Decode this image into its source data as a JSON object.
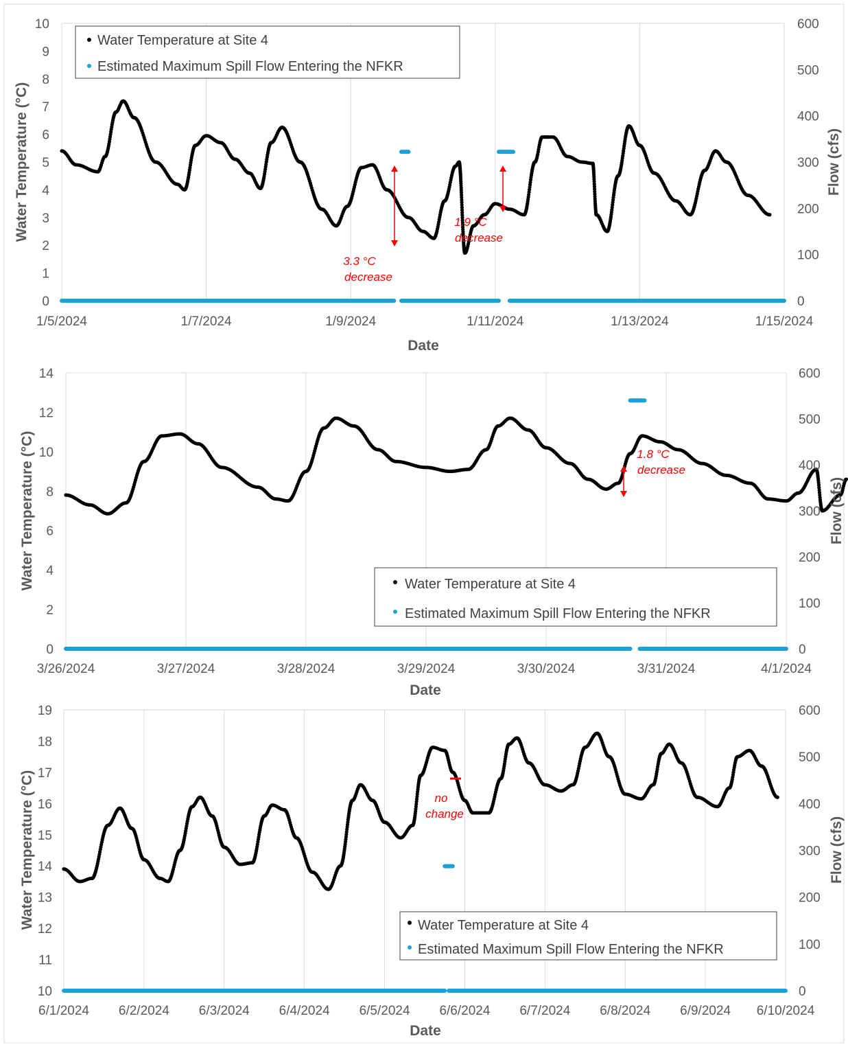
{
  "figure": {
    "colors": {
      "temperature": "#000000",
      "flow": "#1ba1d8",
      "annotation": "#ff0000",
      "grid": "#d9d9d9",
      "axis_text": "#595959"
    }
  },
  "chart_data": [
    {
      "type": "scatter",
      "xlabel": "Date",
      "ylabel": "Water Temperature (°C)",
      "y2label": "Flow (cfs)",
      "x_ticks": [
        "1/5/2024",
        "1/7/2024",
        "1/9/2024",
        "1/11/2024",
        "1/13/2024",
        "1/15/2024"
      ],
      "xlim_days": [
        0,
        10
      ],
      "ylim": [
        0,
        10
      ],
      "y_ticks": [
        0,
        1,
        2,
        3,
        4,
        5,
        6,
        7,
        8,
        9,
        10
      ],
      "y2lim": [
        0,
        600
      ],
      "y2_ticks": [
        0,
        100,
        200,
        300,
        400,
        500,
        600
      ],
      "grid": "vertical",
      "legend": {
        "placement": "top-left",
        "entries": [
          "Water Temperature at Site 4",
          "Estimated Maximum Spill Flow Entering the NFKR"
        ]
      },
      "series": [
        {
          "name": "Water Temperature at Site 4",
          "axis": "left",
          "color": "#000000",
          "points": [
            [
              0,
              5.4
            ],
            [
              0.2,
              4.9
            ],
            [
              0.5,
              4.65
            ],
            [
              0.6,
              5.2
            ],
            [
              0.75,
              6.8
            ],
            [
              0.85,
              7.2
            ],
            [
              1.0,
              6.6
            ],
            [
              1.3,
              5.0
            ],
            [
              1.6,
              4.2
            ],
            [
              1.7,
              4.0
            ],
            [
              1.85,
              5.6
            ],
            [
              2.0,
              5.95
            ],
            [
              2.2,
              5.7
            ],
            [
              2.4,
              5.1
            ],
            [
              2.6,
              4.6
            ],
            [
              2.75,
              4.05
            ],
            [
              2.9,
              5.7
            ],
            [
              3.05,
              6.25
            ],
            [
              3.3,
              5.0
            ],
            [
              3.6,
              3.3
            ],
            [
              3.8,
              2.7
            ],
            [
              3.95,
              3.4
            ],
            [
              4.15,
              4.8
            ],
            [
              4.3,
              4.9
            ],
            [
              4.5,
              4.0
            ],
            [
              4.8,
              3.0
            ],
            [
              5.0,
              2.5
            ],
            [
              5.15,
              2.25
            ],
            [
              5.3,
              3.6
            ],
            [
              5.45,
              4.85
            ],
            [
              5.5,
              5.0
            ],
            [
              5.58,
              1.72
            ],
            [
              5.7,
              2.7
            ],
            [
              5.85,
              3.1
            ],
            [
              6.0,
              3.5
            ],
            [
              6.2,
              3.3
            ],
            [
              6.4,
              3.1
            ],
            [
              6.55,
              5.0
            ],
            [
              6.65,
              5.9
            ],
            [
              6.8,
              5.9
            ],
            [
              7.0,
              5.2
            ],
            [
              7.2,
              5.0
            ],
            [
              7.35,
              4.95
            ],
            [
              7.4,
              3.1
            ],
            [
              7.55,
              2.5
            ],
            [
              7.7,
              4.5
            ],
            [
              7.85,
              6.3
            ],
            [
              8.0,
              5.6
            ],
            [
              8.2,
              4.6
            ],
            [
              8.5,
              3.6
            ],
            [
              8.7,
              3.1
            ],
            [
              8.9,
              4.7
            ],
            [
              9.05,
              5.4
            ],
            [
              9.2,
              5.0
            ],
            [
              9.5,
              3.8
            ],
            [
              9.8,
              3.1
            ],
            [
              9.5,
              3.8
            ]
          ],
          "points_note": ""
        },
        {
          "name": "Estimated Maximum Spill Flow Entering the NFKR",
          "axis": "right",
          "color": "#1ba1d8",
          "segments": [
            [
              [
                0,
                0
              ],
              [
                4.6,
                0
              ]
            ],
            [
              [
                4.7,
                322
              ],
              [
                4.8,
                322
              ]
            ],
            [
              [
                4.7,
                0
              ],
              [
                6.05,
                0
              ]
            ],
            [
              [
                6.05,
                322
              ],
              [
                6.25,
                322
              ]
            ],
            [
              [
                6.2,
                0
              ],
              [
                10,
                0
              ]
            ]
          ]
        }
      ],
      "annotations": [
        {
          "text_line1": "3.3 °C",
          "text_line2": "decrease"
        },
        {
          "text_line1": "1.9 °C",
          "text_line2": "decrease"
        }
      ]
    },
    {
      "type": "scatter",
      "xlabel": "Date",
      "ylabel": "Water Temperature (°C)",
      "y2label": "Flow (cfs)",
      "x_ticks": [
        "3/26/2024",
        "3/27/2024",
        "3/28/2024",
        "3/29/2024",
        "3/30/2024",
        "3/31/2024",
        "4/1/2024"
      ],
      "xlim_days": [
        0,
        6
      ],
      "ylim": [
        0,
        14
      ],
      "y_ticks": [
        0,
        2,
        4,
        6,
        8,
        10,
        12,
        14
      ],
      "y2lim": [
        0,
        600
      ],
      "y2_ticks": [
        0,
        100,
        200,
        300,
        400,
        500,
        600
      ],
      "grid": "vertical",
      "legend": {
        "placement": "bottom-right",
        "entries": [
          "Water Temperature at Site 4",
          "Estimated Maximum Spill Flow Entering the NFKR"
        ]
      },
      "series": [
        {
          "name": "Water Temperature at Site 4",
          "axis": "left",
          "color": "#000000",
          "points": [
            [
              0,
              7.8
            ],
            [
              0.2,
              7.3
            ],
            [
              0.35,
              6.85
            ],
            [
              0.5,
              7.4
            ],
            [
              0.65,
              9.5
            ],
            [
              0.8,
              10.8
            ],
            [
              0.95,
              10.9
            ],
            [
              1.1,
              10.4
            ],
            [
              1.3,
              9.2
            ],
            [
              1.6,
              8.2
            ],
            [
              1.75,
              7.6
            ],
            [
              1.85,
              7.5
            ],
            [
              2.0,
              9.0
            ],
            [
              2.15,
              11.2
            ],
            [
              2.25,
              11.7
            ],
            [
              2.4,
              11.3
            ],
            [
              2.6,
              10.1
            ],
            [
              2.75,
              9.5
            ],
            [
              3.0,
              9.2
            ],
            [
              3.2,
              9.0
            ],
            [
              3.35,
              9.1
            ],
            [
              3.5,
              10.1
            ],
            [
              3.6,
              11.3
            ],
            [
              3.7,
              11.7
            ],
            [
              3.85,
              11.1
            ],
            [
              4.0,
              10.2
            ],
            [
              4.2,
              9.4
            ],
            [
              4.35,
              8.6
            ],
            [
              4.5,
              8.1
            ],
            [
              4.6,
              8.4
            ],
            [
              4.7,
              9.9
            ],
            [
              4.8,
              10.8
            ],
            [
              4.95,
              10.5
            ],
            [
              5.1,
              10.1
            ],
            [
              5.3,
              9.4
            ],
            [
              5.5,
              8.8
            ],
            [
              5.7,
              8.4
            ],
            [
              5.85,
              7.6
            ],
            [
              6.0,
              7.5
            ],
            [
              6.1,
              7.9
            ],
            [
              6.25,
              9.1
            ],
            [
              6.3,
              7.0
            ],
            [
              6.45,
              7.8
            ],
            [
              6.5,
              8.6
            ]
          ],
          "points_note": ""
        },
        {
          "name": "Estimated Maximum Spill Flow Entering the NFKR",
          "axis": "right",
          "color": "#1ba1d8",
          "segments": [
            [
              [
                0,
                0
              ],
              [
                4.7,
                0
              ]
            ],
            [
              [
                4.7,
                540
              ],
              [
                4.82,
                540
              ]
            ],
            [
              [
                4.78,
                0
              ],
              [
                6,
                0
              ]
            ]
          ]
        }
      ],
      "annotations": [
        {
          "text_line1": "1.8 °C",
          "text_line2": "decrease"
        }
      ]
    },
    {
      "type": "scatter",
      "xlabel": "Date",
      "ylabel": "Water Temperature (°C)",
      "y2label": "Flow (cfs)",
      "x_ticks": [
        "6/1/2024",
        "6/2/2024",
        "6/3/2024",
        "6/4/2024",
        "6/5/2024",
        "6/6/2024",
        "6/7/2024",
        "6/8/2024",
        "6/9/2024",
        "6/10/2024"
      ],
      "xlim_days": [
        0,
        9
      ],
      "ylim": [
        10,
        19
      ],
      "y_ticks": [
        10,
        11,
        12,
        13,
        14,
        15,
        16,
        17,
        18,
        19
      ],
      "y2lim": [
        0,
        600
      ],
      "y2_ticks": [
        0,
        100,
        200,
        300,
        400,
        500,
        600
      ],
      "grid": "vertical",
      "legend": {
        "placement": "bottom-right",
        "entries": [
          "Water Temperature at Site 4",
          "Estimated Maximum Spill Flow Entering the NFKR"
        ]
      },
      "series": [
        {
          "name": "Water Temperature at Site 4",
          "axis": "left",
          "color": "#000000",
          "points": [
            [
              0,
              13.9
            ],
            [
              0.2,
              13.5
            ],
            [
              0.35,
              13.6
            ],
            [
              0.55,
              15.3
            ],
            [
              0.7,
              15.85
            ],
            [
              0.85,
              15.2
            ],
            [
              1.0,
              14.2
            ],
            [
              1.2,
              13.6
            ],
            [
              1.3,
              13.5
            ],
            [
              1.45,
              14.5
            ],
            [
              1.6,
              15.9
            ],
            [
              1.7,
              16.2
            ],
            [
              1.85,
              15.6
            ],
            [
              2.0,
              14.6
            ],
            [
              2.2,
              14.05
            ],
            [
              2.35,
              14.1
            ],
            [
              2.5,
              15.6
            ],
            [
              2.6,
              15.95
            ],
            [
              2.75,
              15.8
            ],
            [
              2.9,
              14.9
            ],
            [
              3.1,
              13.8
            ],
            [
              3.3,
              13.25
            ],
            [
              3.45,
              14.0
            ],
            [
              3.6,
              16.1
            ],
            [
              3.7,
              16.6
            ],
            [
              3.85,
              16.1
            ],
            [
              4.0,
              15.4
            ],
            [
              4.2,
              14.9
            ],
            [
              4.35,
              15.3
            ],
            [
              4.45,
              16.9
            ],
            [
              4.6,
              17.8
            ],
            [
              4.75,
              17.7
            ],
            [
              4.85,
              17.0
            ],
            [
              5.0,
              16.1
            ],
            [
              5.1,
              15.7
            ],
            [
              5.3,
              15.7
            ],
            [
              5.45,
              16.8
            ],
            [
              5.55,
              17.9
            ],
            [
              5.65,
              18.1
            ],
            [
              5.8,
              17.3
            ],
            [
              6.0,
              16.6
            ],
            [
              6.2,
              16.4
            ],
            [
              6.35,
              16.6
            ],
            [
              6.5,
              17.8
            ],
            [
              6.65,
              18.25
            ],
            [
              6.8,
              17.5
            ],
            [
              7.0,
              16.3
            ],
            [
              7.2,
              16.15
            ],
            [
              7.35,
              16.6
            ],
            [
              7.45,
              17.6
            ],
            [
              7.55,
              17.9
            ],
            [
              7.7,
              17.3
            ],
            [
              7.9,
              16.2
            ],
            [
              8.15,
              15.9
            ],
            [
              8.3,
              16.5
            ],
            [
              8.4,
              17.5
            ],
            [
              8.55,
              17.7
            ],
            [
              8.7,
              17.2
            ],
            [
              8.9,
              16.2
            ]
          ],
          "points_note": ""
        },
        {
          "name": "Estimated Maximum Spill Flow Entering the NFKR",
          "axis": "right",
          "color": "#1ba1d8",
          "segments": [
            [
              [
                0,
                0
              ],
              [
                4.75,
                0
              ]
            ],
            [
              [
                4.75,
                266
              ],
              [
                4.85,
                266
              ]
            ],
            [
              [
                4.8,
                0
              ],
              [
                9,
                0
              ]
            ]
          ]
        }
      ],
      "annotations": [
        {
          "text_line1": "no",
          "text_line2": "change"
        }
      ]
    }
  ]
}
